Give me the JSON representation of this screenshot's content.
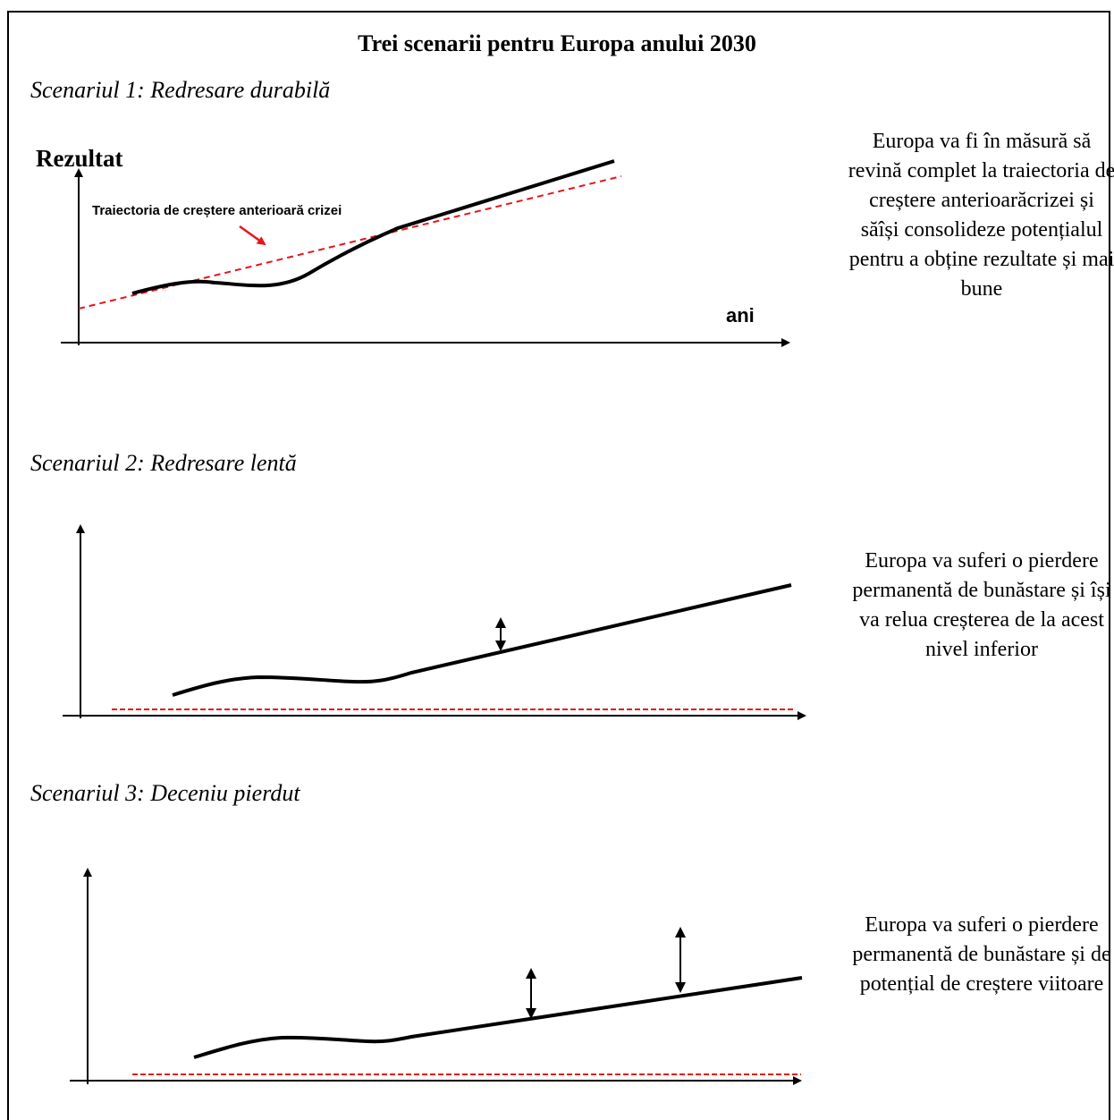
{
  "title": "Trei scenarii pentru Europa anului 2030",
  "scenarios": [
    {
      "heading": "Scenariul 1: Redresare durabilă",
      "y_label": "Rezultat",
      "x_label": "ani",
      "trend_label": "Traiectoria de creștere anterioară crizei",
      "description": "Europa va fi în măsură să revină complet la traiectoria de creștere anterioarăcrizei și săîși consolideze potențialul pentru a obține rezultate și mai bune"
    },
    {
      "heading": "Scenariul 2: Redresare lentă",
      "description": "Europa va suferi o pierdere permanentă de bunăstare și își va relua creșterea de la acest nivel inferior"
    },
    {
      "heading": "Scenariul 3: Deceniu pierdut",
      "description": "Europa va suferi o pierdere permanentă de bunăstare și de potențial de creștere viitoare"
    }
  ],
  "colors": {
    "trend_line": "#e8141a",
    "curve": "#000000"
  }
}
